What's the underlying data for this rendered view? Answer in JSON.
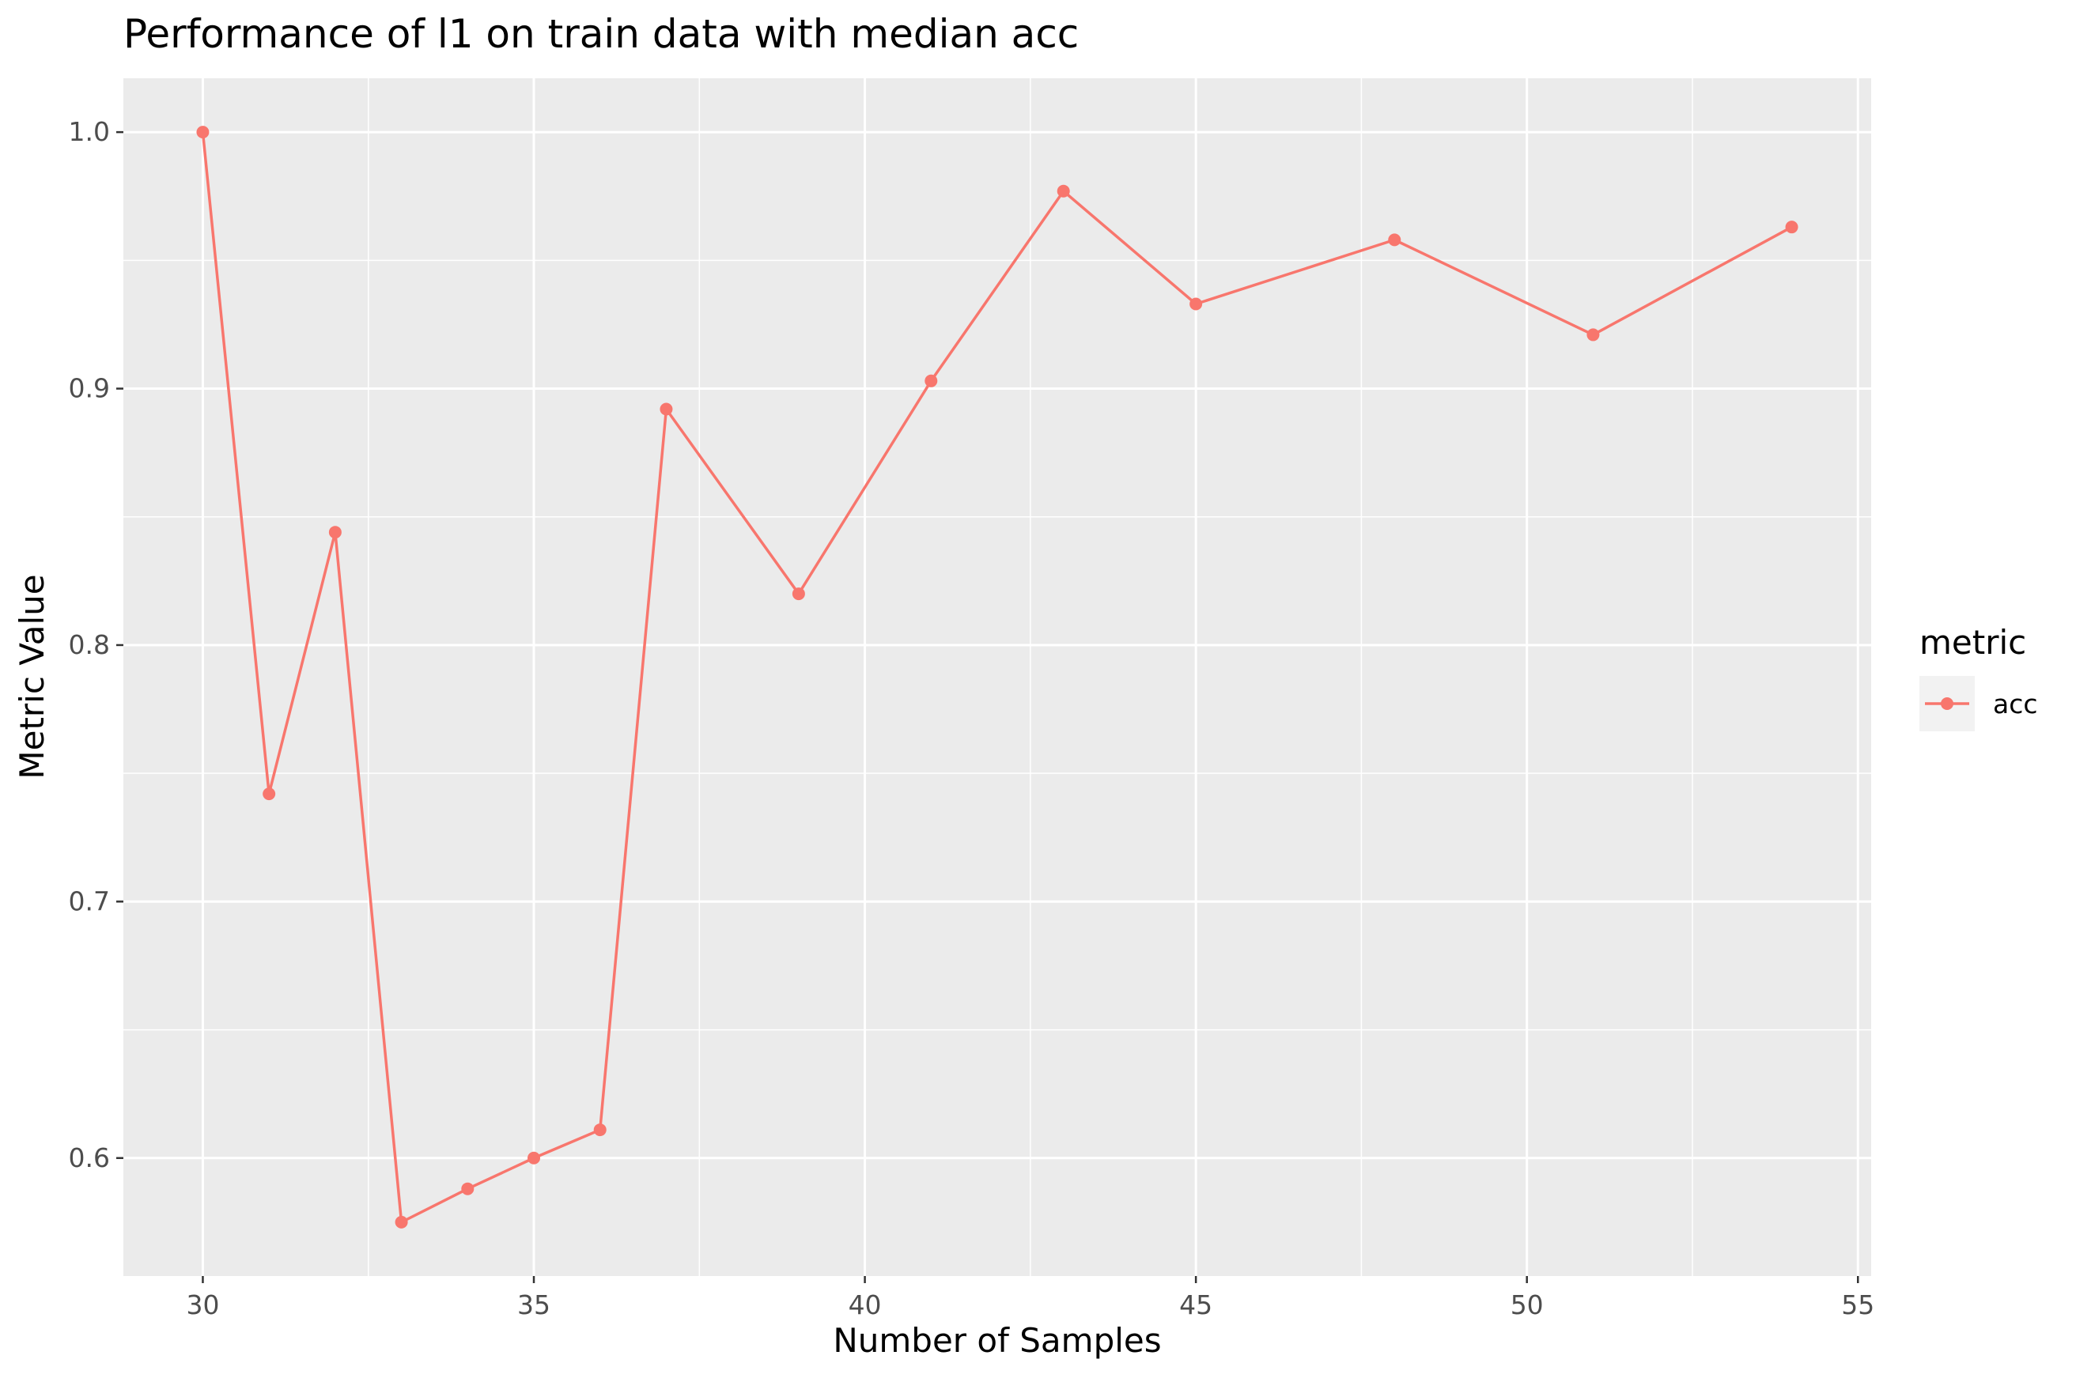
{
  "chart_data": {
    "type": "line",
    "title": "Performance of l1 on train data with median acc",
    "xlabel": "Number of Samples",
    "ylabel": "Metric Value",
    "xlim": [
      28.8,
      55.2
    ],
    "ylim": [
      0.554,
      1.021
    ],
    "x_ticks": [
      30,
      35,
      40,
      45,
      50,
      55
    ],
    "x_tick_labels": [
      "30",
      "35",
      "40",
      "45",
      "50",
      "55"
    ],
    "y_ticks": [
      0.6,
      0.7,
      0.8,
      0.9,
      1.0
    ],
    "y_tick_labels": [
      "0.6",
      "0.7",
      "0.8",
      "0.9",
      "1.0"
    ],
    "grid": true,
    "legend_title": "metric",
    "legend_position": "right",
    "series": [
      {
        "name": "acc",
        "color": "#F8766D",
        "x": [
          30,
          31,
          32,
          33,
          34,
          35,
          36,
          37,
          39,
          41,
          43,
          45,
          48,
          51,
          54
        ],
        "y": [
          1.0,
          0.742,
          0.844,
          0.575,
          0.588,
          0.6,
          0.611,
          0.892,
          0.82,
          0.903,
          0.977,
          0.933,
          0.958,
          0.921,
          0.963
        ]
      }
    ]
  }
}
